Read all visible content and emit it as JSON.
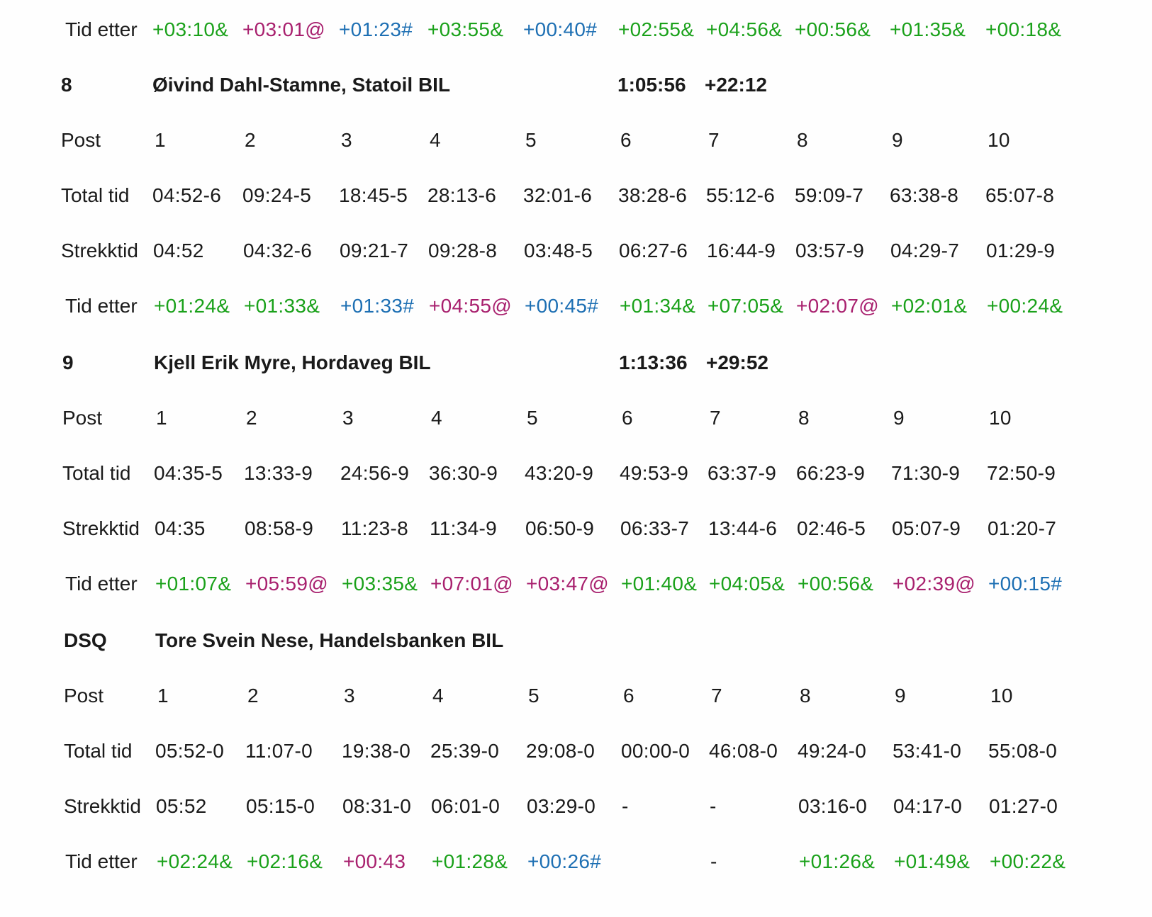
{
  "colors": {
    "green": "#1aa11a",
    "magenta": "#a8206e",
    "blue": "#1d6fb3",
    "dark": "#1a1a1a"
  },
  "labels": {
    "post": "Post",
    "total": "Total tid",
    "strekk": "Strekktid",
    "etter": "Tid etter"
  },
  "top_tid_etter": [
    {
      "text": "+03:10&",
      "color": "green"
    },
    {
      "text": "+03:01@",
      "color": "magenta"
    },
    {
      "text": "+01:23#",
      "color": "blue"
    },
    {
      "text": "+03:55&",
      "color": "green"
    },
    {
      "text": "+00:40#",
      "color": "blue"
    },
    {
      "text": "+02:55&",
      "color": "green"
    },
    {
      "text": "+04:56&",
      "color": "green"
    },
    {
      "text": "+00:56&",
      "color": "green"
    },
    {
      "text": "+01:35&",
      "color": "green"
    },
    {
      "text": "+00:18&",
      "color": "green"
    }
  ],
  "runners": [
    {
      "place": "8",
      "name": "Øivind Dahl-Stamne, Statoil BIL",
      "time": "1:05:56",
      "behind": "+22:12",
      "posts": [
        "1",
        "2",
        "3",
        "4",
        "5",
        "6",
        "7",
        "8",
        "9",
        "10"
      ],
      "total": [
        "04:52-6",
        "09:24-5",
        "18:45-5",
        "28:13-6",
        "32:01-6",
        "38:28-6",
        "55:12-6",
        "59:09-7",
        "63:38-8",
        "65:07-8"
      ],
      "strekk": [
        "04:52",
        "04:32-6",
        "09:21-7",
        "09:28-8",
        "03:48-5",
        "06:27-6",
        "16:44-9",
        "03:57-9",
        "04:29-7",
        "01:29-9"
      ],
      "etter": [
        {
          "text": "+01:24&",
          "color": "green"
        },
        {
          "text": "+01:33&",
          "color": "green"
        },
        {
          "text": "+01:33#",
          "color": "blue"
        },
        {
          "text": "+04:55@",
          "color": "magenta"
        },
        {
          "text": "+00:45#",
          "color": "blue"
        },
        {
          "text": "+01:34&",
          "color": "green"
        },
        {
          "text": "+07:05&",
          "color": "green"
        },
        {
          "text": "+02:07@",
          "color": "magenta"
        },
        {
          "text": "+02:01&",
          "color": "green"
        },
        {
          "text": "+00:24&",
          "color": "green"
        }
      ]
    },
    {
      "place": "9",
      "name": "Kjell Erik Myre, Hordaveg BIL",
      "time": "1:13:36",
      "behind": "+29:52",
      "posts": [
        "1",
        "2",
        "3",
        "4",
        "5",
        "6",
        "7",
        "8",
        "9",
        "10"
      ],
      "total": [
        "04:35-5",
        "13:33-9",
        "24:56-9",
        "36:30-9",
        "43:20-9",
        "49:53-9",
        "63:37-9",
        "66:23-9",
        "71:30-9",
        "72:50-9"
      ],
      "strekk": [
        "04:35",
        "08:58-9",
        "11:23-8",
        "11:34-9",
        "06:50-9",
        "06:33-7",
        "13:44-6",
        "02:46-5",
        "05:07-9",
        "01:20-7"
      ],
      "etter": [
        {
          "text": "+01:07&",
          "color": "green"
        },
        {
          "text": "+05:59@",
          "color": "magenta"
        },
        {
          "text": "+03:35&",
          "color": "green"
        },
        {
          "text": "+07:01@",
          "color": "magenta"
        },
        {
          "text": "+03:47@",
          "color": "magenta"
        },
        {
          "text": "+01:40&",
          "color": "green"
        },
        {
          "text": "+04:05&",
          "color": "green"
        },
        {
          "text": "+00:56&",
          "color": "green"
        },
        {
          "text": "+02:39@",
          "color": "magenta"
        },
        {
          "text": "+00:15#",
          "color": "blue"
        }
      ]
    },
    {
      "place": "DSQ",
      "name": "Tore Svein Nese, Handelsbanken BIL",
      "time": "",
      "behind": "",
      "posts": [
        "1",
        "2",
        "3",
        "4",
        "5",
        "6",
        "7",
        "8",
        "9",
        "10"
      ],
      "total": [
        "05:52-0",
        "11:07-0",
        "19:38-0",
        "25:39-0",
        "29:08-0",
        "00:00-0",
        "46:08-0",
        "49:24-0",
        "53:41-0",
        "55:08-0"
      ],
      "strekk": [
        "05:52",
        "05:15-0",
        "08:31-0",
        "06:01-0",
        "03:29-0",
        "-",
        "-",
        "03:16-0",
        "04:17-0",
        "01:27-0"
      ],
      "etter": [
        {
          "text": "+02:24&",
          "color": "green"
        },
        {
          "text": "+02:16&",
          "color": "green"
        },
        {
          "text": "+00:43",
          "color": "magenta"
        },
        {
          "text": "+01:28&",
          "color": "green"
        },
        {
          "text": "+00:26#",
          "color": "blue"
        },
        {
          "text": "",
          "color": "dark"
        },
        {
          "text": "-",
          "color": "dark"
        },
        {
          "text": "+01:26&",
          "color": "green"
        },
        {
          "text": "+01:49&",
          "color": "green"
        },
        {
          "text": "+00:22&",
          "color": "green"
        }
      ]
    }
  ]
}
